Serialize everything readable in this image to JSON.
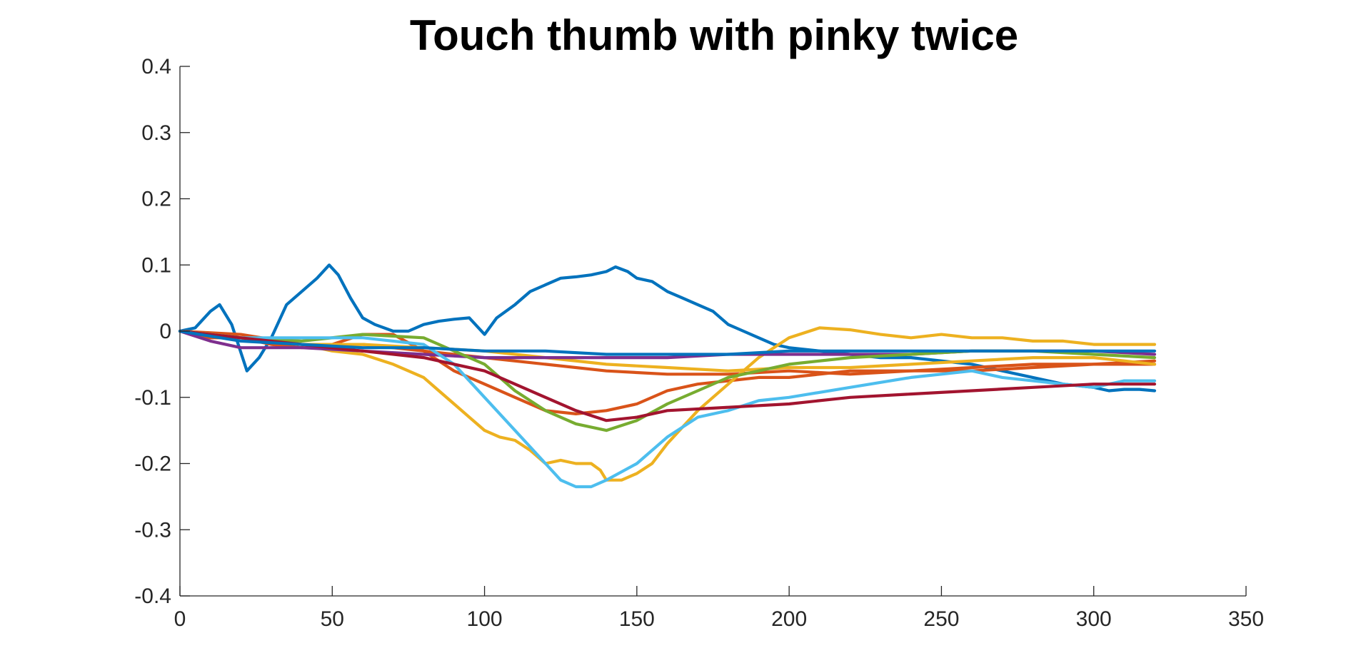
{
  "chart_data": {
    "type": "line",
    "title": "Touch thumb with pinky twice",
    "xlabel": "",
    "ylabel": "",
    "xlim": [
      0,
      350
    ],
    "ylim": [
      -0.4,
      0.4
    ],
    "xticks": [
      0,
      50,
      100,
      150,
      200,
      250,
      300,
      350
    ],
    "yticks": [
      -0.4,
      -0.3,
      -0.2,
      -0.1,
      0,
      0.1,
      0.2,
      0.3,
      0.4
    ],
    "xtick_labels": [
      "0",
      "50",
      "100",
      "150",
      "200",
      "250",
      "300",
      "350"
    ],
    "ytick_labels": [
      "-0.4",
      "-0.3",
      "-0.2",
      "-0.1",
      "0",
      "0.1",
      "0.2",
      "0.3",
      "0.4"
    ],
    "grid": false,
    "legend": "none",
    "series": [
      {
        "color": "#0072BD",
        "x": [
          0,
          5,
          10,
          13,
          17,
          22,
          26,
          30,
          35,
          40,
          45,
          49,
          52,
          56,
          60,
          64,
          70,
          75,
          80,
          85,
          90,
          95,
          100,
          104,
          110,
          115,
          120,
          125,
          130,
          135,
          140,
          143,
          147,
          150,
          155,
          160,
          165,
          170,
          175,
          180,
          185,
          190,
          195,
          200,
          210,
          220,
          230,
          240,
          250,
          260,
          270,
          280,
          290,
          300,
          305,
          310,
          315,
          320
        ],
        "y": [
          0,
          0.005,
          0.03,
          0.04,
          0.01,
          -0.06,
          -0.04,
          -0.01,
          0.04,
          0.06,
          0.08,
          0.1,
          0.085,
          0.05,
          0.02,
          0.01,
          0.0,
          0.0,
          0.01,
          0.015,
          0.018,
          0.02,
          -0.005,
          0.02,
          0.04,
          0.06,
          0.07,
          0.08,
          0.082,
          0.085,
          0.09,
          0.097,
          0.09,
          0.08,
          0.075,
          0.06,
          0.05,
          0.04,
          0.03,
          0.01,
          0.0,
          -0.01,
          -0.02,
          -0.025,
          -0.03,
          -0.035,
          -0.04,
          -0.04,
          -0.045,
          -0.05,
          -0.06,
          -0.07,
          -0.08,
          -0.085,
          -0.09,
          -0.088,
          -0.088,
          -0.09
        ]
      },
      {
        "color": "#D95319",
        "x": [
          0,
          10,
          20,
          30,
          40,
          50,
          60,
          70,
          80,
          90,
          100,
          110,
          120,
          130,
          140,
          150,
          160,
          170,
          180,
          190,
          200,
          210,
          220,
          240,
          260,
          280,
          300,
          320
        ],
        "y": [
          0,
          -0.01,
          -0.01,
          -0.02,
          -0.025,
          -0.02,
          -0.005,
          -0.005,
          -0.03,
          -0.06,
          -0.08,
          -0.1,
          -0.12,
          -0.125,
          -0.12,
          -0.11,
          -0.09,
          -0.08,
          -0.075,
          -0.07,
          -0.07,
          -0.065,
          -0.06,
          -0.06,
          -0.055,
          -0.05,
          -0.05,
          -0.045
        ]
      },
      {
        "color": "#D95319",
        "x": [
          0,
          20,
          40,
          60,
          80,
          100,
          120,
          140,
          160,
          180,
          200,
          220,
          240,
          260,
          280,
          300,
          320
        ],
        "y": [
          0,
          -0.005,
          -0.02,
          -0.02,
          -0.03,
          -0.04,
          -0.05,
          -0.06,
          -0.065,
          -0.065,
          -0.06,
          -0.065,
          -0.06,
          -0.06,
          -0.055,
          -0.05,
          -0.05
        ]
      },
      {
        "color": "#EDB120",
        "x": [
          0,
          10,
          20,
          30,
          40,
          50,
          60,
          70,
          80,
          85,
          90,
          95,
          100,
          105,
          110,
          115,
          120,
          125,
          130,
          135,
          138,
          140,
          145,
          150,
          155,
          160,
          170,
          180,
          190,
          200,
          210,
          220,
          230,
          240,
          250,
          260,
          270,
          280,
          290,
          300,
          310,
          320
        ],
        "y": [
          0,
          -0.005,
          -0.01,
          -0.015,
          -0.02,
          -0.03,
          -0.035,
          -0.05,
          -0.07,
          -0.09,
          -0.11,
          -0.13,
          -0.15,
          -0.16,
          -0.165,
          -0.18,
          -0.2,
          -0.195,
          -0.2,
          -0.2,
          -0.21,
          -0.225,
          -0.225,
          -0.215,
          -0.2,
          -0.17,
          -0.12,
          -0.08,
          -0.04,
          -0.01,
          0.005,
          0.002,
          -0.005,
          -0.01,
          -0.005,
          -0.01,
          -0.01,
          -0.015,
          -0.015,
          -0.02,
          -0.02,
          -0.02
        ]
      },
      {
        "color": "#EDB120",
        "x": [
          0,
          20,
          40,
          60,
          80,
          100,
          120,
          140,
          160,
          180,
          200,
          220,
          240,
          260,
          280,
          300,
          310,
          320
        ],
        "y": [
          0,
          -0.01,
          -0.02,
          -0.02,
          -0.025,
          -0.03,
          -0.04,
          -0.05,
          -0.055,
          -0.06,
          -0.055,
          -0.055,
          -0.05,
          -0.045,
          -0.04,
          -0.04,
          -0.045,
          -0.05
        ]
      },
      {
        "color": "#7E2F8E",
        "x": [
          0,
          10,
          20,
          40,
          60,
          80,
          100,
          120,
          140,
          160,
          180,
          200,
          220,
          240,
          260,
          280,
          300,
          320
        ],
        "y": [
          0,
          -0.015,
          -0.025,
          -0.025,
          -0.03,
          -0.035,
          -0.04,
          -0.04,
          -0.04,
          -0.04,
          -0.035,
          -0.035,
          -0.035,
          -0.035,
          -0.03,
          -0.03,
          -0.03,
          -0.035
        ]
      },
      {
        "color": "#77AC30",
        "x": [
          0,
          20,
          40,
          60,
          80,
          100,
          110,
          120,
          130,
          140,
          150,
          160,
          170,
          180,
          190,
          200,
          220,
          240,
          260,
          280,
          300,
          320
        ],
        "y": [
          0,
          -0.01,
          -0.015,
          -0.005,
          -0.01,
          -0.05,
          -0.09,
          -0.12,
          -0.14,
          -0.15,
          -0.135,
          -0.11,
          -0.09,
          -0.07,
          -0.06,
          -0.05,
          -0.04,
          -0.035,
          -0.03,
          -0.03,
          -0.035,
          -0.04
        ]
      },
      {
        "color": "#4DBEEE",
        "x": [
          0,
          20,
          40,
          60,
          80,
          90,
          100,
          110,
          120,
          125,
          130,
          135,
          140,
          150,
          160,
          170,
          180,
          190,
          200,
          220,
          240,
          260,
          270,
          280,
          290,
          300,
          310,
          320
        ],
        "y": [
          0,
          -0.01,
          -0.01,
          -0.01,
          -0.02,
          -0.05,
          -0.1,
          -0.15,
          -0.2,
          -0.225,
          -0.235,
          -0.235,
          -0.225,
          -0.2,
          -0.16,
          -0.13,
          -0.12,
          -0.105,
          -0.1,
          -0.085,
          -0.07,
          -0.06,
          -0.07,
          -0.075,
          -0.08,
          -0.085,
          -0.075,
          -0.075
        ]
      },
      {
        "color": "#A2142F",
        "x": [
          0,
          20,
          40,
          60,
          80,
          100,
          110,
          120,
          130,
          140,
          150,
          160,
          180,
          200,
          220,
          240,
          260,
          280,
          300,
          320
        ],
        "y": [
          0,
          -0.01,
          -0.02,
          -0.03,
          -0.04,
          -0.06,
          -0.08,
          -0.1,
          -0.12,
          -0.135,
          -0.13,
          -0.12,
          -0.115,
          -0.11,
          -0.1,
          -0.095,
          -0.09,
          -0.085,
          -0.08,
          -0.08
        ]
      },
      {
        "color": "#0072BD",
        "x": [
          0,
          20,
          40,
          60,
          80,
          100,
          120,
          140,
          160,
          180,
          200,
          220,
          240,
          260,
          280,
          300,
          320
        ],
        "y": [
          0,
          -0.015,
          -0.02,
          -0.025,
          -0.025,
          -0.03,
          -0.03,
          -0.035,
          -0.035,
          -0.035,
          -0.03,
          -0.03,
          -0.03,
          -0.03,
          -0.03,
          -0.03,
          -0.03
        ]
      }
    ]
  }
}
